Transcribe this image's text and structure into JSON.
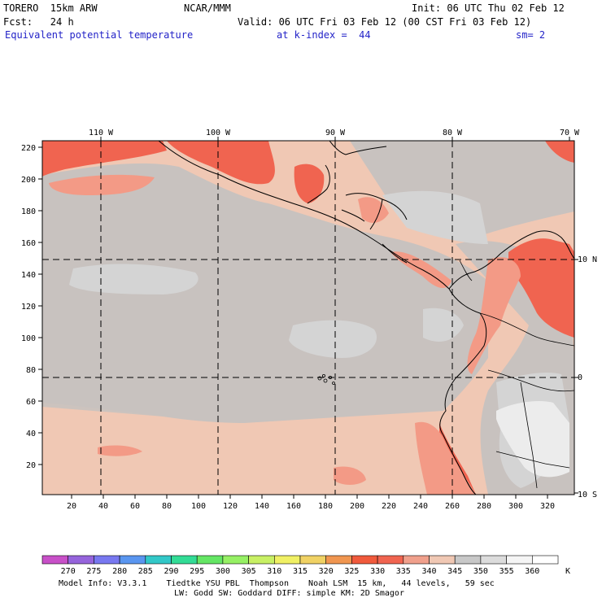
{
  "header": {
    "model": "TORERO  15km ARW",
    "center": "NCAR/MMM",
    "init": "Init: 06 UTC Thu 02 Feb 12",
    "fcst": "Fcst:   24 h",
    "valid": "Valid: 06 UTC Fri 03 Feb 12 (00 CST Fri 03 Feb 12)",
    "field": "Equivalent potential temperature",
    "level": "at k-index =  44",
    "smooth": "sm= 2"
  },
  "map": {
    "lon_labels": [
      "110 W",
      "100 W",
      "90 W",
      "80 W",
      "70 W"
    ],
    "lat_labels": [
      "10 N",
      "0",
      "10 S"
    ],
    "y_ticks": [
      "220",
      "200",
      "180",
      "160",
      "140",
      "120",
      "100",
      "80",
      "60",
      "40",
      "20"
    ],
    "x_ticks": [
      "20",
      "40",
      "60",
      "80",
      "100",
      "120",
      "140",
      "160",
      "180",
      "200",
      "220",
      "240",
      "260",
      "280",
      "300",
      "320"
    ]
  },
  "colorbar": {
    "labels": [
      "270",
      "275",
      "280",
      "285",
      "290",
      "295",
      "300",
      "305",
      "310",
      "315",
      "320",
      "325",
      "330",
      "335",
      "340",
      "345",
      "350",
      "355",
      "360"
    ],
    "unit": "K",
    "colors": [
      "#c850c8",
      "#9664dc",
      "#7878f0",
      "#5a96f0",
      "#32c8c8",
      "#32dc96",
      "#64e664",
      "#96f064",
      "#c8f064",
      "#f0f064",
      "#f0d264",
      "#f09650",
      "#f05a3c",
      "#f06450",
      "#f0a08c",
      "#f0c8b4",
      "#c8c8c8",
      "#dcdcdc",
      "#f5f5f5",
      "#ffffff"
    ]
  },
  "footer": {
    "line1": "Model Info: V3.3.1    Tiedtke YSU PBL  Thompson    Noah LSM  15 km,   44 levels,   59 sec",
    "line2": "LW: Godd SW: Goddard DIFF: simple KM: 2D Smagor"
  }
}
